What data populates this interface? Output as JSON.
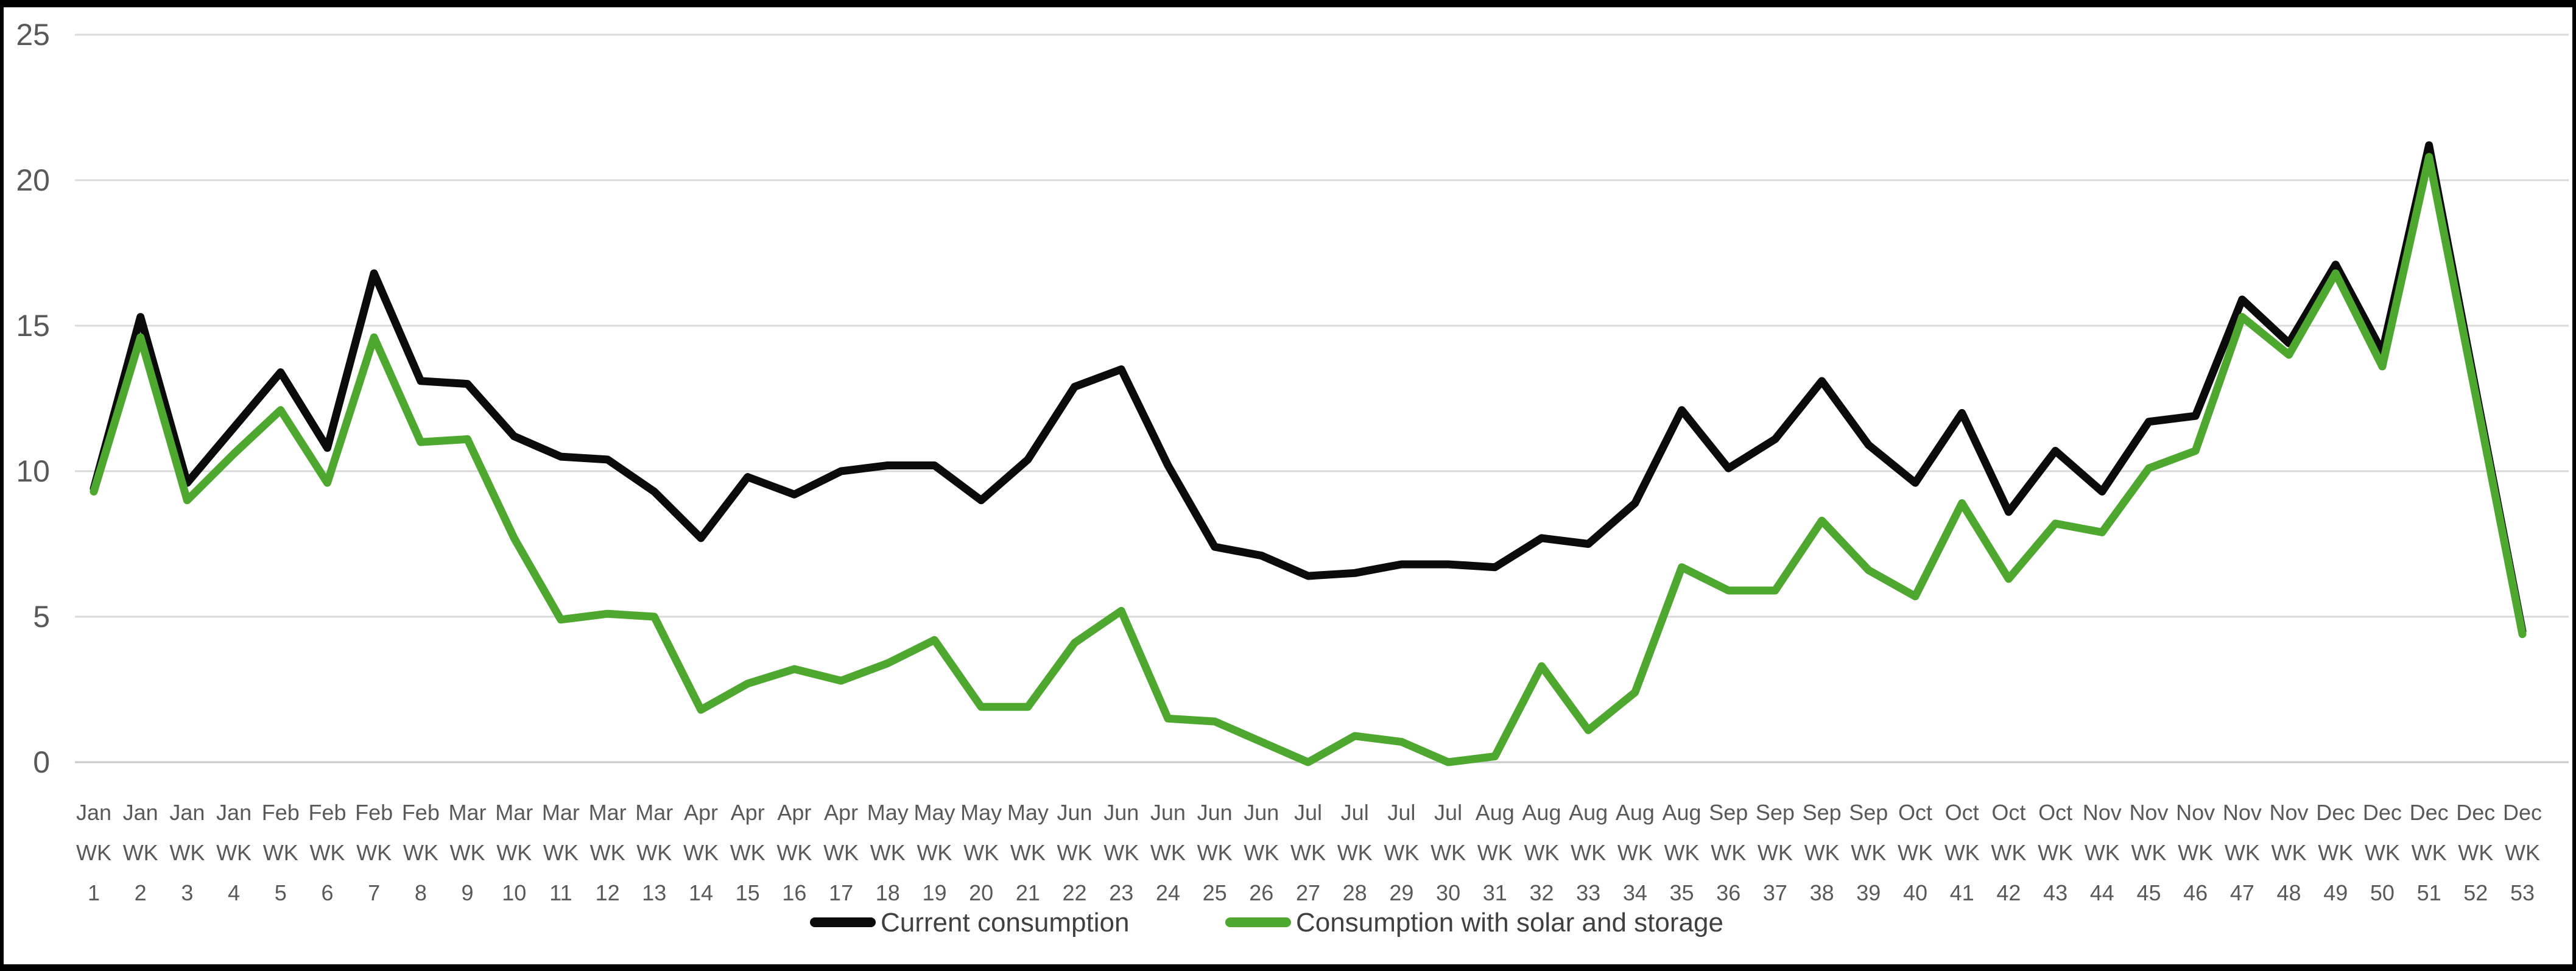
{
  "frame": {
    "background": "#ffffff",
    "border_color": "#000000"
  },
  "chart_data": {
    "type": "line",
    "title": "",
    "grid": {
      "show": true,
      "color": "#d9d9d9",
      "zero_line_color": "#c9c9c9"
    },
    "y_axis": {
      "min": 0,
      "max": 25,
      "ticks": [
        0,
        5,
        10,
        15,
        20,
        25
      ],
      "label_color": "#595959"
    },
    "x_axis": {
      "wk_text": "WK",
      "label_color": "#595959",
      "categories": [
        {
          "month": "Jan",
          "week": 1
        },
        {
          "month": "Jan",
          "week": 2
        },
        {
          "month": "Jan",
          "week": 3
        },
        {
          "month": "Jan",
          "week": 4
        },
        {
          "month": "Feb",
          "week": 5
        },
        {
          "month": "Feb",
          "week": 6
        },
        {
          "month": "Feb",
          "week": 7
        },
        {
          "month": "Feb",
          "week": 8
        },
        {
          "month": "Mar",
          "week": 9
        },
        {
          "month": "Mar",
          "week": 10
        },
        {
          "month": "Mar",
          "week": 11
        },
        {
          "month": "Mar",
          "week": 12
        },
        {
          "month": "Mar",
          "week": 13
        },
        {
          "month": "Apr",
          "week": 14
        },
        {
          "month": "Apr",
          "week": 15
        },
        {
          "month": "Apr",
          "week": 16
        },
        {
          "month": "Apr",
          "week": 17
        },
        {
          "month": "May",
          "week": 18
        },
        {
          "month": "May",
          "week": 19
        },
        {
          "month": "May",
          "week": 20
        },
        {
          "month": "May",
          "week": 21
        },
        {
          "month": "Jun",
          "week": 22
        },
        {
          "month": "Jun",
          "week": 23
        },
        {
          "month": "Jun",
          "week": 24
        },
        {
          "month": "Jun",
          "week": 25
        },
        {
          "month": "Jun",
          "week": 26
        },
        {
          "month": "Jul",
          "week": 27
        },
        {
          "month": "Jul",
          "week": 28
        },
        {
          "month": "Jul",
          "week": 29
        },
        {
          "month": "Jul",
          "week": 30
        },
        {
          "month": "Aug",
          "week": 31
        },
        {
          "month": "Aug",
          "week": 32
        },
        {
          "month": "Aug",
          "week": 33
        },
        {
          "month": "Aug",
          "week": 34
        },
        {
          "month": "Aug",
          "week": 35
        },
        {
          "month": "Sep",
          "week": 36
        },
        {
          "month": "Sep",
          "week": 37
        },
        {
          "month": "Sep",
          "week": 38
        },
        {
          "month": "Sep",
          "week": 39
        },
        {
          "month": "Oct",
          "week": 40
        },
        {
          "month": "Oct",
          "week": 41
        },
        {
          "month": "Oct",
          "week": 42
        },
        {
          "month": "Oct",
          "week": 43
        },
        {
          "month": "Nov",
          "week": 44
        },
        {
          "month": "Nov",
          "week": 45
        },
        {
          "month": "Nov",
          "week": 46
        },
        {
          "month": "Nov",
          "week": 47
        },
        {
          "month": "Nov",
          "week": 48
        },
        {
          "month": "Dec",
          "week": 49
        },
        {
          "month": "Dec",
          "week": 50
        },
        {
          "month": "Dec",
          "week": 51
        },
        {
          "month": "Dec",
          "week": 52
        },
        {
          "month": "Dec",
          "week": 53
        }
      ]
    },
    "legend": {
      "position": "bottom",
      "text_color": "#404040",
      "items": [
        {
          "label": "Current consumption",
          "color": "#0b0b0b"
        },
        {
          "label": "Consumption with solar and storage",
          "color": "#4ea72e"
        }
      ]
    },
    "series": [
      {
        "name": "Current consumption",
        "color": "#0b0b0b",
        "values": [
          9.4,
          15.3,
          9.6,
          11.5,
          13.4,
          10.8,
          16.8,
          13.1,
          13.0,
          11.2,
          10.5,
          10.4,
          9.3,
          7.7,
          9.8,
          9.2,
          10.0,
          10.2,
          10.2,
          9.0,
          10.4,
          12.9,
          13.5,
          10.2,
          7.4,
          7.1,
          6.4,
          6.5,
          6.8,
          6.8,
          6.7,
          7.7,
          7.5,
          8.9,
          12.1,
          10.1,
          11.1,
          13.1,
          10.9,
          9.6,
          12.0,
          8.6,
          10.7,
          9.3,
          11.7,
          11.9,
          15.9,
          14.4,
          17.1,
          14.1,
          21.2,
          12.8,
          4.5
        ]
      },
      {
        "name": "Consumption with solar and storage",
        "color": "#4ea72e",
        "values": [
          9.3,
          14.6,
          9.0,
          10.6,
          12.1,
          9.6,
          14.6,
          11.0,
          11.1,
          7.7,
          4.9,
          5.1,
          5.0,
          1.8,
          2.7,
          3.2,
          2.8,
          3.4,
          4.2,
          1.9,
          1.9,
          4.1,
          5.2,
          1.5,
          1.4,
          0.7,
          0.0,
          0.9,
          0.7,
          0.0,
          0.2,
          3.3,
          1.1,
          2.4,
          6.7,
          5.9,
          5.9,
          8.3,
          6.6,
          5.7,
          8.9,
          6.3,
          8.2,
          7.9,
          10.1,
          10.7,
          15.3,
          14.0,
          16.8,
          13.6,
          20.8,
          12.6,
          4.4
        ]
      }
    ]
  }
}
